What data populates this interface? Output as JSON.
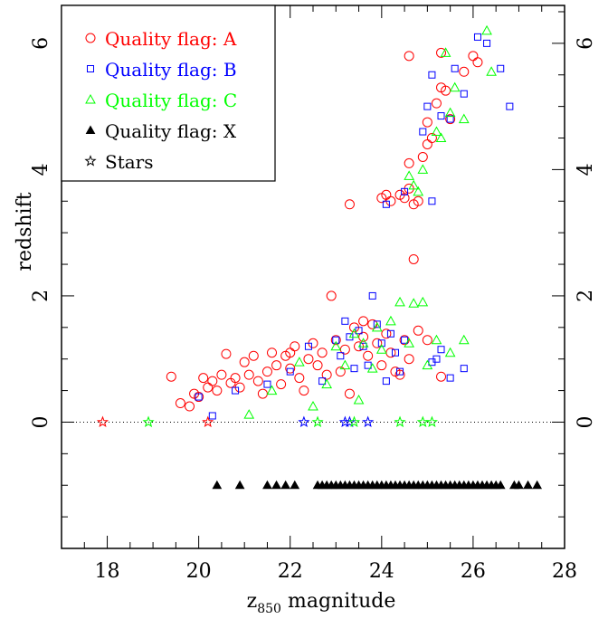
{
  "chart_data": {
    "type": "scatter",
    "xlabel_main": "z",
    "xlabel_sub": "850",
    "xlabel_rest": " magnitude",
    "ylabel": "redshift",
    "xlim": [
      17,
      28
    ],
    "ylim": [
      -2,
      6.6
    ],
    "x_ticks": [
      18,
      20,
      22,
      24,
      26,
      28
    ],
    "y_ticks": [
      0,
      2,
      4,
      6
    ],
    "grid": false,
    "legend_position": "top-left",
    "reference_line": {
      "y": 0,
      "style": "dotted"
    },
    "series": [
      {
        "name": "Quality flag: A",
        "marker": "circle",
        "color": "#ff0000",
        "points": [
          [
            19.4,
            0.72
          ],
          [
            19.6,
            0.3
          ],
          [
            19.8,
            0.25
          ],
          [
            19.9,
            0.45
          ],
          [
            20.0,
            0.4
          ],
          [
            20.1,
            0.7
          ],
          [
            20.2,
            0.55
          ],
          [
            20.3,
            0.65
          ],
          [
            20.4,
            0.5
          ],
          [
            20.5,
            0.75
          ],
          [
            20.6,
            1.08
          ],
          [
            20.7,
            0.62
          ],
          [
            20.8,
            0.7
          ],
          [
            20.9,
            0.55
          ],
          [
            21.0,
            0.95
          ],
          [
            21.1,
            0.75
          ],
          [
            21.2,
            1.05
          ],
          [
            21.3,
            0.65
          ],
          [
            21.4,
            0.45
          ],
          [
            21.5,
            0.8
          ],
          [
            21.6,
            1.1
          ],
          [
            21.7,
            0.9
          ],
          [
            21.8,
            0.6
          ],
          [
            21.9,
            1.05
          ],
          [
            22.0,
            0.85
          ],
          [
            22.1,
            1.2
          ],
          [
            22.2,
            0.7
          ],
          [
            22.3,
            0.5
          ],
          [
            22.4,
            1.0
          ],
          [
            22.5,
            1.25
          ],
          [
            22.6,
            0.9
          ],
          [
            22.7,
            1.1
          ],
          [
            22.8,
            0.75
          ],
          [
            22.9,
            2.0
          ],
          [
            23.0,
            1.3
          ],
          [
            23.1,
            0.8
          ],
          [
            23.2,
            1.15
          ],
          [
            23.3,
            0.45
          ],
          [
            23.4,
            1.5
          ],
          [
            23.5,
            1.2
          ],
          [
            23.6,
            1.35
          ],
          [
            23.7,
            1.05
          ],
          [
            23.8,
            1.55
          ],
          [
            23.9,
            1.25
          ],
          [
            24.0,
            0.9
          ],
          [
            24.1,
            1.4
          ],
          [
            24.2,
            1.1
          ],
          [
            24.3,
            0.8
          ],
          [
            24.4,
            0.75
          ],
          [
            24.5,
            1.3
          ],
          [
            24.6,
            1.0
          ],
          [
            23.3,
            3.45
          ],
          [
            24.0,
            3.55
          ],
          [
            24.1,
            3.6
          ],
          [
            24.2,
            3.5
          ],
          [
            24.4,
            3.6
          ],
          [
            24.5,
            3.55
          ],
          [
            24.6,
            3.7
          ],
          [
            24.7,
            3.45
          ],
          [
            24.8,
            3.5
          ],
          [
            24.6,
            4.1
          ],
          [
            24.9,
            4.2
          ],
          [
            25.0,
            4.4
          ],
          [
            25.1,
            4.5
          ],
          [
            25.0,
            4.75
          ],
          [
            25.2,
            5.05
          ],
          [
            25.3,
            5.3
          ],
          [
            25.4,
            5.25
          ],
          [
            25.5,
            4.8
          ],
          [
            25.8,
            5.55
          ],
          [
            26.0,
            5.8
          ],
          [
            26.1,
            5.7
          ],
          [
            24.6,
            5.8
          ],
          [
            25.3,
            5.85
          ],
          [
            24.7,
            2.58
          ],
          [
            25.3,
            0.72
          ],
          [
            25.0,
            1.3
          ],
          [
            24.8,
            1.45
          ],
          [
            22.0,
            1.1
          ],
          [
            23.6,
            1.6
          ]
        ]
      },
      {
        "name": "Quality flag: B",
        "marker": "square",
        "color": "#0000ff",
        "points": [
          [
            20.0,
            0.4
          ],
          [
            20.3,
            0.1
          ],
          [
            20.8,
            0.5
          ],
          [
            21.5,
            0.6
          ],
          [
            22.0,
            0.8
          ],
          [
            22.4,
            1.2
          ],
          [
            22.7,
            0.65
          ],
          [
            23.0,
            1.3
          ],
          [
            23.1,
            1.05
          ],
          [
            23.2,
            1.6
          ],
          [
            23.3,
            1.35
          ],
          [
            23.4,
            0.85
          ],
          [
            23.5,
            1.45
          ],
          [
            23.6,
            1.2
          ],
          [
            23.7,
            0.9
          ],
          [
            23.8,
            2.0
          ],
          [
            23.9,
            1.55
          ],
          [
            24.0,
            1.25
          ],
          [
            24.1,
            0.65
          ],
          [
            24.2,
            1.4
          ],
          [
            24.3,
            1.1
          ],
          [
            24.4,
            0.8
          ],
          [
            24.5,
            1.3
          ],
          [
            25.1,
            0.95
          ],
          [
            25.2,
            1.0
          ],
          [
            25.3,
            1.15
          ],
          [
            25.5,
            0.7
          ],
          [
            25.8,
            0.85
          ],
          [
            24.1,
            3.45
          ],
          [
            24.5,
            3.65
          ],
          [
            25.1,
            3.5
          ],
          [
            24.9,
            4.6
          ],
          [
            25.0,
            5.0
          ],
          [
            25.5,
            4.8
          ],
          [
            25.6,
            5.6
          ],
          [
            25.8,
            5.2
          ],
          [
            26.1,
            6.1
          ],
          [
            26.3,
            6.0
          ],
          [
            26.6,
            5.6
          ],
          [
            26.8,
            5.0
          ],
          [
            25.1,
            5.5
          ],
          [
            25.3,
            4.85
          ]
        ]
      },
      {
        "name": "Quality flag: C",
        "marker": "triangle",
        "color": "#00ff00",
        "points": [
          [
            21.1,
            0.12
          ],
          [
            21.6,
            0.5
          ],
          [
            22.2,
            0.95
          ],
          [
            22.5,
            0.25
          ],
          [
            22.8,
            0.6
          ],
          [
            23.0,
            1.2
          ],
          [
            23.2,
            0.9
          ],
          [
            23.4,
            1.4
          ],
          [
            23.5,
            0.35
          ],
          [
            23.6,
            1.25
          ],
          [
            23.8,
            0.85
          ],
          [
            23.9,
            1.5
          ],
          [
            24.0,
            1.15
          ],
          [
            24.2,
            1.6
          ],
          [
            24.4,
            1.9
          ],
          [
            24.6,
            1.25
          ],
          [
            24.7,
            1.88
          ],
          [
            24.9,
            1.9
          ],
          [
            25.0,
            0.9
          ],
          [
            25.2,
            1.3
          ],
          [
            25.5,
            1.1
          ],
          [
            25.8,
            1.3
          ],
          [
            24.6,
            3.9
          ],
          [
            24.7,
            3.75
          ],
          [
            24.8,
            3.65
          ],
          [
            24.9,
            4.0
          ],
          [
            25.3,
            4.5
          ],
          [
            25.5,
            4.9
          ],
          [
            25.8,
            4.8
          ],
          [
            26.3,
            6.2
          ],
          [
            26.4,
            5.55
          ],
          [
            25.4,
            5.85
          ],
          [
            25.2,
            4.6
          ],
          [
            25.6,
            5.3
          ]
        ]
      },
      {
        "name": "Quality flag: X",
        "marker": "filled-triangle",
        "color": "#000000",
        "points": [
          [
            20.4,
            -1
          ],
          [
            20.9,
            -1
          ],
          [
            21.5,
            -1
          ],
          [
            21.7,
            -1
          ],
          [
            21.9,
            -1
          ],
          [
            22.1,
            -1
          ],
          [
            22.6,
            -1
          ],
          [
            22.7,
            -1
          ],
          [
            22.8,
            -1
          ],
          [
            22.9,
            -1
          ],
          [
            23.0,
            -1
          ],
          [
            23.1,
            -1
          ],
          [
            23.2,
            -1
          ],
          [
            23.3,
            -1
          ],
          [
            23.4,
            -1
          ],
          [
            23.5,
            -1
          ],
          [
            23.6,
            -1
          ],
          [
            23.7,
            -1
          ],
          [
            23.8,
            -1
          ],
          [
            23.9,
            -1
          ],
          [
            24.0,
            -1
          ],
          [
            24.1,
            -1
          ],
          [
            24.2,
            -1
          ],
          [
            24.3,
            -1
          ],
          [
            24.4,
            -1
          ],
          [
            24.5,
            -1
          ],
          [
            24.6,
            -1
          ],
          [
            24.7,
            -1
          ],
          [
            24.8,
            -1
          ],
          [
            24.9,
            -1
          ],
          [
            25.0,
            -1
          ],
          [
            25.1,
            -1
          ],
          [
            25.2,
            -1
          ],
          [
            25.3,
            -1
          ],
          [
            25.4,
            -1
          ],
          [
            25.5,
            -1
          ],
          [
            25.6,
            -1
          ],
          [
            25.7,
            -1
          ],
          [
            25.8,
            -1
          ],
          [
            25.9,
            -1
          ],
          [
            26.0,
            -1
          ],
          [
            26.1,
            -1
          ],
          [
            26.2,
            -1
          ],
          [
            26.3,
            -1
          ],
          [
            26.4,
            -1
          ],
          [
            26.5,
            -1
          ],
          [
            26.6,
            -1
          ],
          [
            26.9,
            -1
          ],
          [
            27.0,
            -1
          ],
          [
            27.2,
            -1
          ],
          [
            27.4,
            -1
          ]
        ]
      },
      {
        "name": "Stars",
        "marker": "star",
        "color": "#000000",
        "points": [
          [
            17.9,
            0,
            "#ff0000"
          ],
          [
            18.9,
            0,
            "#00ff00"
          ],
          [
            20.2,
            0,
            "#ff0000"
          ],
          [
            22.3,
            0,
            "#0000ff"
          ],
          [
            22.6,
            0,
            "#00ff00"
          ],
          [
            23.2,
            0,
            "#0000ff"
          ],
          [
            23.3,
            0,
            "#0000ff"
          ],
          [
            23.4,
            0,
            "#00ff00"
          ],
          [
            23.7,
            0,
            "#0000ff"
          ],
          [
            24.4,
            0,
            "#00ff00"
          ],
          [
            24.9,
            0,
            "#00ff00"
          ],
          [
            25.1,
            0,
            "#00ff00"
          ]
        ]
      }
    ]
  }
}
